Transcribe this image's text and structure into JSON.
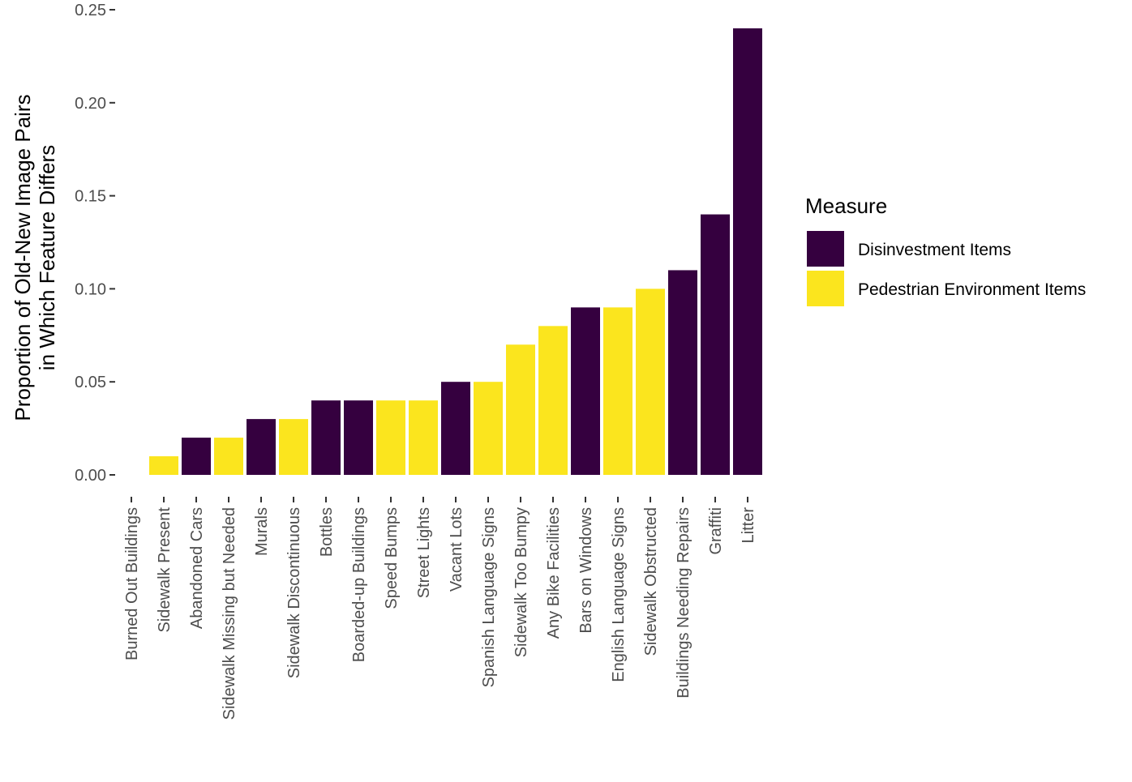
{
  "chart_data": {
    "type": "bar",
    "title": "",
    "xlabel": "",
    "ylabel_lines": [
      "Proportion of Old-New Image Pairs",
      "in Which Feature Differs"
    ],
    "ylim": [
      0,
      0.25
    ],
    "yticks": [
      0.0,
      0.05,
      0.1,
      0.15,
      0.2,
      0.25
    ],
    "ytick_labels": [
      "0.00",
      "0.05",
      "0.10",
      "0.15",
      "0.20",
      "0.25"
    ],
    "grid": false,
    "legend_position": "right",
    "legend_title": "Measure",
    "groups": [
      {
        "name": "Disinvestment Items",
        "color": "#35003f"
      },
      {
        "name": "Pedestrian Environment Items",
        "color": "#fbe51e"
      }
    ],
    "categories": [
      "Burned Out Buildings",
      "Sidewalk Present",
      "Abandoned Cars",
      "Sidewalk Missing but Needed",
      "Murals",
      "Sidewalk Discontinuous",
      "Bottles",
      "Boarded-up Buildings",
      "Speed Bumps",
      "Street Lights",
      "Vacant Lots",
      "Spanish Language Signs",
      "Sidewalk Too Bumpy",
      "Any Bike Facilities",
      "Bars on Windows",
      "English Language Signs",
      "Sidewalk Obstructed",
      "Buildings Needing Repairs",
      "Graffiti",
      "Litter"
    ],
    "values": [
      0.0,
      0.01,
      0.02,
      0.02,
      0.03,
      0.03,
      0.04,
      0.04,
      0.04,
      0.04,
      0.05,
      0.05,
      0.07,
      0.08,
      0.09,
      0.09,
      0.1,
      0.11,
      0.14,
      0.24
    ],
    "group_index": [
      0,
      1,
      0,
      1,
      0,
      1,
      0,
      0,
      1,
      1,
      0,
      1,
      1,
      1,
      0,
      1,
      1,
      0,
      0,
      0
    ]
  }
}
